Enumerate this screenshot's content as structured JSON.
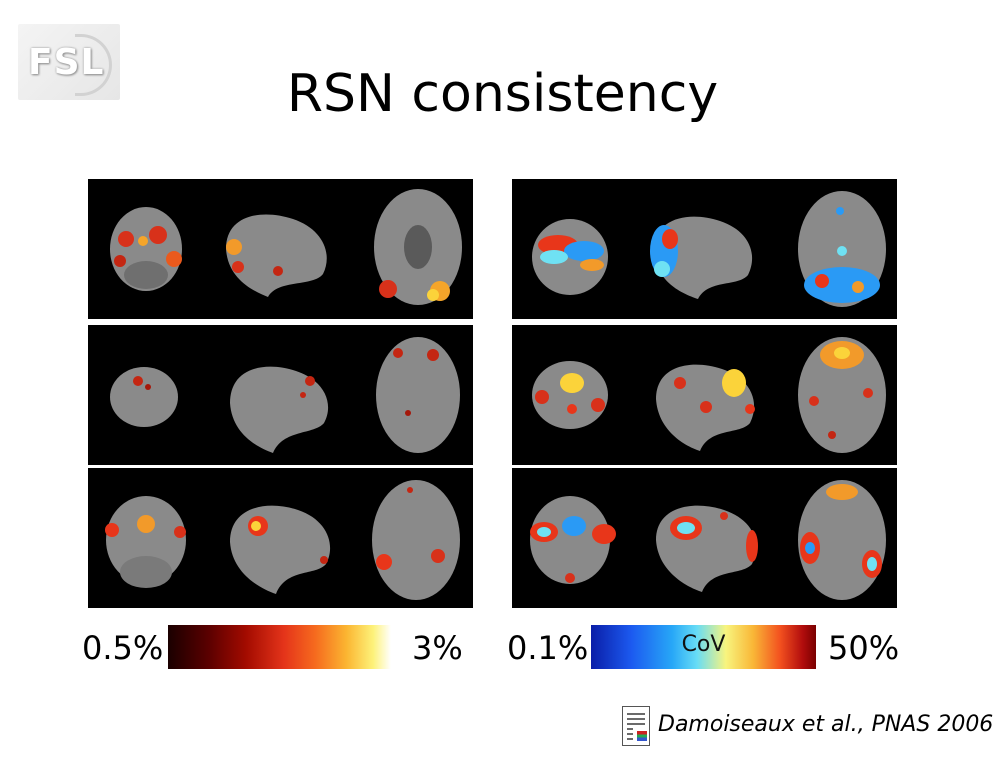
{
  "slide": {
    "title": "RSN consistency",
    "logo_text": "FSL"
  },
  "left_colorbar": {
    "min_label": "0.5%",
    "max_label": "3%"
  },
  "right_colorbar": {
    "min_label": "0.1%",
    "center_label": "CoV",
    "max_label": "50%"
  },
  "citation": {
    "text": "Damoiseaux et al., PNAS 2006",
    "icon": "document-icon"
  },
  "panels": [
    {
      "column": "left",
      "row": 1,
      "overlay": "warm"
    },
    {
      "column": "left",
      "row": 2,
      "overlay": "warm"
    },
    {
      "column": "left",
      "row": 3,
      "overlay": "warm"
    },
    {
      "column": "right",
      "row": 1,
      "overlay": "cov"
    },
    {
      "column": "right",
      "row": 2,
      "overlay": "cov"
    },
    {
      "column": "right",
      "row": 3,
      "overlay": "cov"
    }
  ],
  "colors": {
    "panel_background": "#000000",
    "brain_gray": "#8c8c8c",
    "warm_blob": "#e8361a",
    "warm_hot": "#fbd33a",
    "cov_blue": "#2a9af5",
    "cov_cyan": "#6fe1f3"
  }
}
